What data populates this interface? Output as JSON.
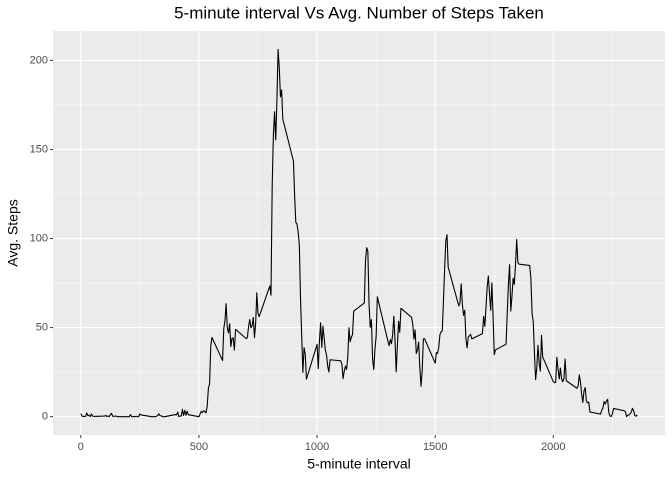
{
  "chart_data": {
    "type": "line",
    "title": "5-minute interval Vs Avg. Number of Steps Taken",
    "x_label": "5-minute interval",
    "y_label": "Avg. Steps",
    "xlim": [
      -117.75,
      2472.75
    ],
    "ylim": [
      -10.3,
      216.5
    ],
    "xticks": [
      0,
      500,
      1000,
      1500,
      2000
    ],
    "yticks": [
      0,
      50,
      100,
      150,
      200
    ],
    "x_minor_ticks": [
      250,
      750,
      1250,
      1750,
      2250
    ],
    "y_minor_ticks": [
      25,
      75,
      125,
      175
    ],
    "grid": true,
    "x": [
      0,
      5,
      10,
      15,
      20,
      25,
      30,
      35,
      40,
      45,
      50,
      55,
      100,
      105,
      110,
      115,
      120,
      125,
      130,
      135,
      140,
      145,
      150,
      155,
      200,
      205,
      210,
      215,
      220,
      225,
      230,
      235,
      240,
      245,
      250,
      255,
      300,
      305,
      310,
      315,
      320,
      325,
      330,
      335,
      340,
      345,
      350,
      355,
      400,
      405,
      410,
      415,
      420,
      425,
      430,
      435,
      440,
      445,
      450,
      455,
      500,
      505,
      510,
      515,
      520,
      525,
      530,
      535,
      540,
      545,
      550,
      555,
      600,
      605,
      610,
      615,
      620,
      625,
      630,
      635,
      640,
      645,
      650,
      655,
      700,
      705,
      710,
      715,
      720,
      725,
      730,
      735,
      740,
      745,
      750,
      755,
      800,
      805,
      810,
      815,
      820,
      825,
      830,
      835,
      840,
      845,
      850,
      855,
      900,
      905,
      910,
      915,
      920,
      925,
      930,
      935,
      940,
      945,
      950,
      955,
      1000,
      1005,
      1010,
      1015,
      1020,
      1025,
      1030,
      1035,
      1040,
      1045,
      1050,
      1055,
      1100,
      1105,
      1110,
      1115,
      1120,
      1125,
      1130,
      1135,
      1140,
      1145,
      1150,
      1155,
      1200,
      1205,
      1210,
      1215,
      1220,
      1225,
      1230,
      1235,
      1240,
      1245,
      1250,
      1255,
      1300,
      1305,
      1310,
      1315,
      1320,
      1325,
      1330,
      1335,
      1340,
      1345,
      1350,
      1355,
      1400,
      1405,
      1410,
      1415,
      1420,
      1425,
      1430,
      1435,
      1440,
      1445,
      1450,
      1455,
      1500,
      1505,
      1510,
      1515,
      1520,
      1525,
      1530,
      1535,
      1540,
      1545,
      1550,
      1555,
      1600,
      1605,
      1610,
      1615,
      1620,
      1625,
      1630,
      1635,
      1640,
      1645,
      1650,
      1655,
      1700,
      1705,
      1710,
      1715,
      1720,
      1725,
      1730,
      1735,
      1740,
      1745,
      1750,
      1755,
      1800,
      1805,
      1810,
      1815,
      1820,
      1825,
      1830,
      1835,
      1840,
      1845,
      1850,
      1855,
      1900,
      1905,
      1910,
      1915,
      1920,
      1925,
      1930,
      1935,
      1940,
      1945,
      1950,
      1955,
      2000,
      2005,
      2010,
      2015,
      2020,
      2025,
      2030,
      2035,
      2040,
      2045,
      2050,
      2055,
      2100,
      2105,
      2110,
      2115,
      2120,
      2125,
      2130,
      2135,
      2140,
      2145,
      2150,
      2155,
      2200,
      2205,
      2210,
      2215,
      2220,
      2225,
      2230,
      2235,
      2240,
      2245,
      2250,
      2255,
      2300,
      2305,
      2310,
      2315,
      2320,
      2325,
      2330,
      2335,
      2340,
      2345,
      2350,
      2355
    ],
    "series": [
      {
        "name": "Avg. Steps",
        "color": "#000000",
        "values": [
          1.72,
          0.34,
          0.13,
          0.15,
          0.08,
          2.09,
          0.53,
          0.87,
          0,
          1.47,
          0.3,
          0.13,
          0.32,
          0.68,
          0.15,
          0.34,
          0,
          1.11,
          1.83,
          0.17,
          0.17,
          0.38,
          0.26,
          0,
          0,
          0,
          1.13,
          0,
          0,
          0.13,
          0,
          0.23,
          0,
          0,
          1.55,
          0.94,
          0,
          0,
          0,
          0,
          0.21,
          0.62,
          1.62,
          0.58,
          0.49,
          0.08,
          0,
          0,
          1.19,
          0.94,
          2.57,
          0,
          0.34,
          0.36,
          4.11,
          0.66,
          3.49,
          0.83,
          3.11,
          1.11,
          0,
          1.57,
          3,
          2.25,
          3.32,
          2.96,
          2.09,
          6.06,
          16.02,
          18.34,
          39.45,
          44.49,
          31.49,
          49.26,
          53.77,
          63.45,
          49.96,
          47.08,
          52.15,
          39.34,
          44.02,
          44.17,
          37.36,
          49.04,
          43.81,
          44.38,
          50.51,
          54.51,
          49.92,
          50.98,
          55.68,
          44.32,
          52.26,
          69.55,
          57.85,
          56.15,
          73.38,
          68.21,
          129.43,
          157.53,
          171.15,
          155.4,
          177.3,
          206.17,
          195.92,
          179.57,
          183.4,
          167.02,
          143.45,
          124.04,
          109.11,
          108.11,
          103.72,
          95.96,
          66.21,
          45.23,
          24.79,
          38.75,
          34.98,
          21.06,
          40.57,
          26.98,
          42.42,
          52.66,
          38.92,
          50.79,
          44.28,
          37.42,
          34.7,
          28.34,
          25.09,
          31.94,
          31.36,
          29.68,
          21.32,
          25.55,
          28.38,
          26.47,
          33.43,
          49.98,
          42.04,
          44.6,
          46.04,
          59.19,
          63.87,
          87.7,
          94.85,
          92.77,
          63.4,
          50.17,
          54.47,
          32.42,
          26.53,
          37.74,
          45.06,
          67.28,
          42.34,
          39.89,
          43.26,
          40.98,
          46.25,
          56.43,
          42.75,
          25.13,
          39.96,
          53.55,
          47.32,
          60.81,
          55.75,
          51.96,
          43.58,
          48.7,
          35.47,
          37.55,
          41.85,
          27.51,
          17.11,
          26.08,
          43.62,
          43.77,
          30.02,
          36.07,
          35.49,
          38.85,
          45.96,
          47.75,
          48.13,
          65.32,
          82.91,
          98.66,
          102.11,
          83.96,
          62.13,
          64.13,
          74.55,
          63.17,
          56.91,
          59.77,
          43.87,
          38.57,
          44.66,
          45.45,
          46.21,
          43.68,
          46.62,
          56.3,
          50.72,
          61.23,
          72.72,
          78.94,
          68.94,
          59.66,
          75.09,
          56.51,
          34.77,
          37.45,
          40.68,
          58.02,
          74.7,
          85.32,
          59.26,
          67.77,
          77.7,
          74.25,
          85.34,
          99.45,
          86.58,
          85.6,
          84.87,
          77.83,
          58.04,
          53.36,
          36.32,
          20.72,
          27.4,
          40.02,
          30.21,
          25.55,
          45.66,
          33.53,
          19.62,
          19.02,
          19.34,
          33.34,
          26.81,
          21.17,
          27.3,
          21.34,
          19.55,
          21.32,
          32.3,
          20.15,
          15.94,
          17.23,
          23.45,
          19.25,
          12.45,
          8.02,
          14.66,
          16.3,
          8.68,
          7.79,
          8.13,
          2.62,
          1.45,
          3.68,
          4.81,
          8.51,
          7.08,
          8.7,
          9.75,
          2.21,
          0.32,
          0.11,
          1.6,
          4.6,
          3.3,
          2.85,
          0,
          0.83,
          0.96,
          1.58,
          2.6,
          4.7,
          3.3,
          0.64,
          0.23,
          1.08
        ]
      }
    ]
  }
}
